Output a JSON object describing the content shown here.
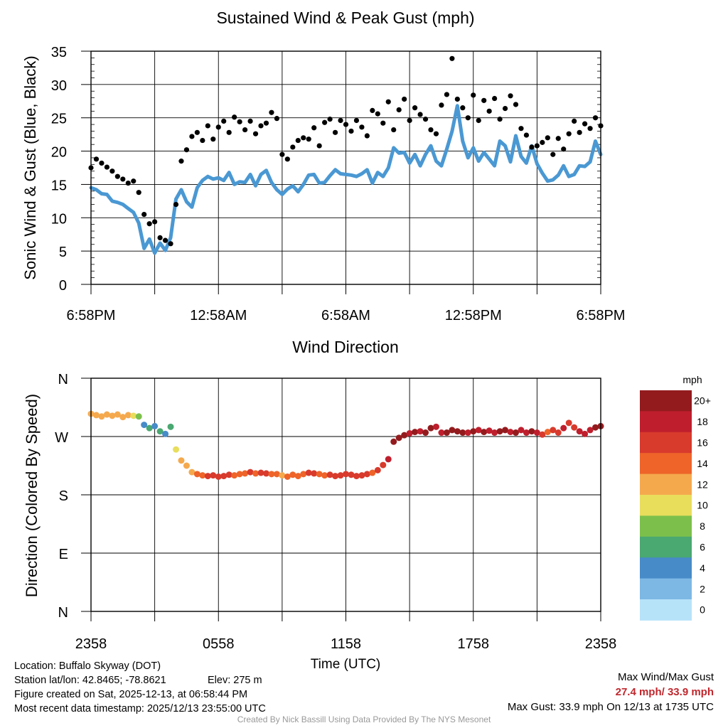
{
  "chart_data": [
    {
      "type": "line+scatter",
      "title": "Sustained Wind & Peak Gust (mph)",
      "ylabel": "Sonic Wind & Gust (Blue, Black)",
      "xlabel": "",
      "ylim": [
        0,
        35
      ],
      "yticks": [
        0,
        5,
        10,
        15,
        20,
        25,
        30,
        35
      ],
      "xlim": [
        0,
        24
      ],
      "xticks": [
        {
          "value": 0,
          "label": "6:58PM"
        },
        {
          "value": 6,
          "label": "12:58AM"
        },
        {
          "value": 12,
          "label": "6:58AM"
        },
        {
          "value": 18,
          "label": "12:58PM"
        },
        {
          "value": 24,
          "label": "6:58PM"
        }
      ],
      "grid": true,
      "series": [
        {
          "name": "Sustained Wind",
          "style": "line",
          "color": "#4a98d3",
          "x": [
            0,
            0.25,
            0.5,
            0.75,
            1,
            1.25,
            1.5,
            1.75,
            2,
            2.25,
            2.5,
            2.75,
            3,
            3.25,
            3.5,
            3.75,
            4,
            4.25,
            4.5,
            4.75,
            5,
            5.25,
            5.5,
            5.75,
            6,
            6.25,
            6.5,
            6.75,
            7,
            7.25,
            7.5,
            7.75,
            8,
            8.25,
            8.5,
            8.75,
            9,
            9.25,
            9.5,
            9.75,
            10,
            10.25,
            10.5,
            10.75,
            11,
            11.25,
            11.5,
            11.75,
            12,
            12.25,
            12.5,
            12.75,
            13,
            13.25,
            13.5,
            13.75,
            14,
            14.25,
            14.5,
            14.75,
            15,
            15.25,
            15.5,
            15.75,
            16,
            16.25,
            16.5,
            16.75,
            17,
            17.25,
            17.5,
            17.75,
            18,
            18.25,
            18.5,
            18.75,
            19,
            19.25,
            19.5,
            19.75,
            20,
            20.25,
            20.5,
            20.75,
            21,
            21.25,
            21.5,
            21.75,
            22,
            22.25,
            22.5,
            22.75,
            23,
            23.25,
            23.5,
            23.75,
            24
          ],
          "y": [
            14.5,
            14.2,
            13.6,
            13.5,
            12.5,
            12.3,
            12.0,
            11.4,
            10.8,
            9.2,
            5.4,
            6.8,
            4.7,
            6.2,
            5.1,
            7.0,
            12.8,
            14.2,
            12.4,
            11.6,
            14.5,
            15.6,
            16.2,
            15.8,
            16.0,
            15.6,
            16.8,
            15.0,
            15.4,
            15.3,
            16.5,
            14.8,
            16.5,
            17.1,
            15.3,
            14.2,
            13.5,
            14.3,
            14.8,
            13.9,
            15.0,
            16.4,
            16.5,
            15.2,
            15.3,
            16.3,
            17.2,
            16.6,
            16.5,
            16.4,
            16.2,
            16.6,
            17.2,
            15.2,
            16.8,
            16.2,
            17.5,
            20.5,
            19.7,
            19.8,
            18.2,
            19.5,
            17.8,
            19.5,
            20.8,
            18.5,
            17.8,
            20.3,
            23.0,
            26.8,
            21.5,
            19.0,
            20.5,
            18.5,
            19.8,
            18.8,
            17.8,
            21.5,
            20.8,
            18.4,
            22.3,
            19.2,
            18.2,
            20.8,
            18.1,
            16.7,
            15.5,
            15.7,
            16.4,
            17.8,
            16.2,
            16.5,
            17.8,
            17.7,
            18.4,
            21.5,
            19.5
          ]
        },
        {
          "name": "Peak Gust",
          "style": "scatter",
          "color": "#000000",
          "x": [
            0,
            0.25,
            0.5,
            0.75,
            1,
            1.25,
            1.5,
            1.75,
            2,
            2.25,
            2.5,
            2.75,
            3,
            3.25,
            3.5,
            3.75,
            4,
            4.25,
            4.5,
            4.75,
            5,
            5.25,
            5.5,
            5.75,
            6,
            6.25,
            6.5,
            6.75,
            7,
            7.25,
            7.5,
            7.75,
            8,
            8.25,
            8.5,
            8.75,
            9,
            9.25,
            9.5,
            9.75,
            10,
            10.25,
            10.5,
            10.75,
            11,
            11.25,
            11.5,
            11.75,
            12,
            12.25,
            12.5,
            12.75,
            13,
            13.25,
            13.5,
            13.75,
            14,
            14.25,
            14.5,
            14.75,
            15,
            15.25,
            15.5,
            15.75,
            16,
            16.25,
            16.5,
            16.75,
            17,
            17.25,
            17.5,
            17.75,
            18,
            18.25,
            18.5,
            18.75,
            19,
            19.25,
            19.5,
            19.75,
            20,
            20.25,
            20.5,
            20.75,
            21,
            21.25,
            21.5,
            21.75,
            22,
            22.25,
            22.5,
            22.75,
            23,
            23.25,
            23.5,
            23.75,
            24
          ],
          "y": [
            17.5,
            18.8,
            18.2,
            17.6,
            17.0,
            16.2,
            15.8,
            15.2,
            15.5,
            13.8,
            10.5,
            9.1,
            9.4,
            7.0,
            6.6,
            6.1,
            12.0,
            18.5,
            20.2,
            22.2,
            22.8,
            21.6,
            23.8,
            21.8,
            23.6,
            24.5,
            22.8,
            25.1,
            24.4,
            23.2,
            24.5,
            22.6,
            23.8,
            24.2,
            25.8,
            24.9,
            19.5,
            18.8,
            20.6,
            21.6,
            22.0,
            21.8,
            23.5,
            20.8,
            24.3,
            24.8,
            22.8,
            24.6,
            24.0,
            23.0,
            24.6,
            23.6,
            22.3,
            26.1,
            25.6,
            24.2,
            27.4,
            23.2,
            26.2,
            27.8,
            24.6,
            26.5,
            25.5,
            24.8,
            23.2,
            22.6,
            26.9,
            28.5,
            33.9,
            27.8,
            26.5,
            25.0,
            28.4,
            24.6,
            27.6,
            26.0,
            27.9,
            24.8,
            26.4,
            28.3,
            27.0,
            23.4,
            22.4,
            20.6,
            20.8,
            21.3,
            22.0,
            19.5,
            21.9,
            20.3,
            22.6,
            24.5,
            22.8,
            24.1,
            23.4,
            25.0,
            23.8
          ]
        }
      ]
    },
    {
      "type": "scatter",
      "title": "Wind Direction",
      "ylabel": "Direction (Colored By Speed)",
      "xlabel": "Time (UTC)",
      "ylim": [
        0,
        360
      ],
      "yticks": [
        {
          "value": 0,
          "label": "N"
        },
        {
          "value": 90,
          "label": "E"
        },
        {
          "value": 180,
          "label": "S"
        },
        {
          "value": 270,
          "label": "W"
        },
        {
          "value": 360,
          "label": "N"
        }
      ],
      "xlim": [
        0,
        24
      ],
      "xticks": [
        {
          "value": 0,
          "label": "2358"
        },
        {
          "value": 6,
          "label": "0558"
        },
        {
          "value": 12,
          "label": "1158"
        },
        {
          "value": 18,
          "label": "1758"
        },
        {
          "value": 24,
          "label": "2358"
        }
      ],
      "grid": true,
      "x": [
        0,
        0.25,
        0.5,
        0.75,
        1,
        1.25,
        1.5,
        1.75,
        2,
        2.25,
        2.5,
        2.75,
        3,
        3.25,
        3.5,
        3.75,
        4,
        4.25,
        4.5,
        4.75,
        5,
        5.25,
        5.5,
        5.75,
        6,
        6.25,
        6.5,
        6.75,
        7,
        7.25,
        7.5,
        7.75,
        8,
        8.25,
        8.5,
        8.75,
        9,
        9.25,
        9.5,
        9.75,
        10,
        10.25,
        10.5,
        10.75,
        11,
        11.25,
        11.5,
        11.75,
        12,
        12.25,
        12.5,
        12.75,
        13,
        13.25,
        13.5,
        13.75,
        14,
        14.25,
        14.5,
        14.75,
        15,
        15.25,
        15.5,
        15.75,
        16,
        16.25,
        16.5,
        16.75,
        17,
        17.25,
        17.5,
        17.75,
        18,
        18.25,
        18.5,
        18.75,
        19,
        19.25,
        19.5,
        19.75,
        20,
        20.25,
        20.5,
        20.75,
        21,
        21.25,
        21.5,
        21.75,
        22,
        22.25,
        22.5,
        22.75,
        23,
        23.25,
        23.5,
        23.75,
        24
      ],
      "direction": [
        305,
        303,
        301,
        304,
        302,
        304,
        300,
        303,
        302,
        301,
        288,
        283,
        286,
        278,
        274,
        285,
        250,
        233,
        225,
        215,
        212,
        210,
        209,
        210,
        208,
        209,
        211,
        210,
        212,
        213,
        215,
        213,
        214,
        213,
        212,
        212,
        210,
        208,
        211,
        209,
        212,
        214,
        213,
        212,
        210,
        211,
        209,
        210,
        212,
        211,
        209,
        210,
        212,
        214,
        218,
        226,
        235,
        262,
        268,
        272,
        275,
        277,
        278,
        276,
        283,
        285,
        276,
        276,
        280,
        278,
        276,
        276,
        278,
        280,
        277,
        279,
        276,
        278,
        280,
        277,
        276,
        280,
        276,
        278,
        276,
        273,
        277,
        280,
        276,
        283,
        291,
        284,
        278,
        274,
        280,
        284,
        286
      ],
      "speed": [
        13,
        13,
        13,
        12,
        12,
        12,
        12,
        12,
        11,
        9,
        5,
        6,
        4,
        6,
        5,
        7,
        11,
        13,
        12,
        12,
        14,
        15,
        16,
        16,
        16,
        16,
        17,
        15,
        15,
        15,
        16,
        15,
        16,
        17,
        15,
        14,
        13,
        14,
        15,
        14,
        15,
        16,
        16,
        15,
        15,
        16,
        17,
        16,
        16,
        16,
        16,
        17,
        17,
        15,
        17,
        16,
        18,
        20,
        20,
        20,
        18,
        20,
        18,
        20,
        21,
        18,
        18,
        20,
        23,
        27,
        22,
        19,
        21,
        18,
        20,
        19,
        18,
        22,
        21,
        18,
        22,
        19,
        18,
        21,
        18,
        17,
        15,
        16,
        16,
        18,
        16,
        17,
        18,
        18,
        18,
        22,
        20
      ],
      "colorbar": {
        "title": "mph",
        "labels": [
          "20+",
          "18",
          "16",
          "14",
          "12",
          "10",
          "8",
          "6",
          "4",
          "2",
          "0"
        ],
        "colors": [
          "#931b1e",
          "#bf1e2d",
          "#d83a2c",
          "#ee6429",
          "#f5a94d",
          "#e9dd5c",
          "#7cc04b",
          "#4aa871",
          "#478bc8",
          "#7db8e5",
          "#b7e3f9"
        ]
      }
    }
  ],
  "info": {
    "location": "Location: Buffalo Skyway (DOT)",
    "latlon": "Station lat/lon: 42.8465; -78.8621",
    "elev": "Elev: 275 m",
    "created": "Figure created on Sat, 2025-12-13, at 06:58:44 PM",
    "recent": "Most recent data timestamp: 2025/12/13 23:55:00 UTC",
    "max_title": "Max Wind/Max Gust",
    "max_values": "27.4 mph/ 33.9 mph",
    "max_gust": "Max Gust: 33.9 mph On 12/13 at 1735 UTC",
    "credit": "Created By Nick Bassill Using Data Provided By The NYS Mesonet"
  }
}
